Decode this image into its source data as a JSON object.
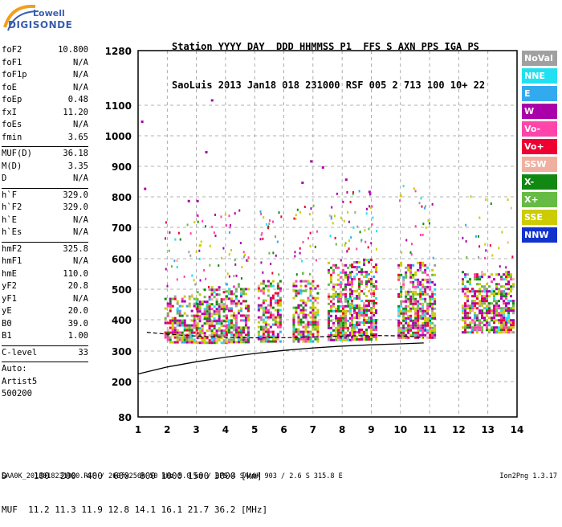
{
  "logo": {
    "line1": "Lowell",
    "line2": "DIGISONDE"
  },
  "header": {
    "line1": "Station YYYY DAY  DDD HHMMSS P1  FFS S AXN PPS IGA PS",
    "line2": "SaoLuis 2013 Jan18 018 231000 RSF 005 2 713 100 10+ 22"
  },
  "params": {
    "group1": [
      {
        "k": "foF2",
        "v": "10.800"
      },
      {
        "k": "foF1",
        "v": "N/A"
      },
      {
        "k": "foF1p",
        "v": "N/A"
      },
      {
        "k": "foE",
        "v": "N/A"
      },
      {
        "k": "foEp",
        "v": "0.48"
      },
      {
        "k": "fxI",
        "v": "11.20"
      },
      {
        "k": "foEs",
        "v": "N/A"
      },
      {
        "k": "fmin",
        "v": "3.65"
      }
    ],
    "group2": [
      {
        "k": "MUF(D)",
        "v": "36.18"
      },
      {
        "k": "M(D)",
        "v": "3.35"
      },
      {
        "k": "D",
        "v": "N/A"
      }
    ],
    "group3": [
      {
        "k": "h`F",
        "v": "329.0"
      },
      {
        "k": "h`F2",
        "v": "329.0"
      },
      {
        "k": "h`E",
        "v": "N/A"
      },
      {
        "k": "h`Es",
        "v": "N/A"
      }
    ],
    "group4": [
      {
        "k": "hmF2",
        "v": "325.8"
      },
      {
        "k": "hmF1",
        "v": "N/A"
      },
      {
        "k": "hmE",
        "v": "110.0"
      },
      {
        "k": "yF2",
        "v": "20.8"
      },
      {
        "k": "yF1",
        "v": "N/A"
      },
      {
        "k": "yE",
        "v": "20.0"
      },
      {
        "k": "B0",
        "v": "39.0"
      },
      {
        "k": "B1",
        "v": "1.00"
      }
    ],
    "group5": [
      {
        "k": "C-level",
        "v": "33"
      }
    ],
    "auto": [
      "Auto:",
      "Artist5",
      "500200"
    ]
  },
  "legend": [
    {
      "label": "NoVal",
      "color": "#a0a0a0"
    },
    {
      "label": "NNE",
      "color": "#22e0f0"
    },
    {
      "label": "E",
      "color": "#33aaee"
    },
    {
      "label": "W",
      "color": "#aa00aa"
    },
    {
      "label": "Vo-",
      "color": "#ff44aa"
    },
    {
      "label": "Vo+",
      "color": "#ee0033"
    },
    {
      "label": "SSW",
      "color": "#f0b0a0"
    },
    {
      "label": "X-",
      "color": "#118811"
    },
    {
      "label": "X+",
      "color": "#66bb44"
    },
    {
      "label": "SSE",
      "color": "#cccc00"
    },
    {
      "label": "NNW",
      "color": "#1133cc"
    }
  ],
  "footer": {
    "line1": "D     100  200  400  600  800 1000 1500 3000 [km]",
    "line2": "MUF  11.2 11.3 11.9 12.8 14.1 16.1 21.7 36.2 [MHz]",
    "line3": "SAA0K_2013018231000.RSF / 260fx256h 50 kHz 5.0 km / DPS-4 SAA0K 903 / 2.6 S 315.8 E",
    "version": "Ion2Png 1.3.17"
  },
  "chart_data": {
    "type": "scatter",
    "x_ticks": [
      "1",
      "2",
      "3",
      "4",
      "5",
      "6",
      "7",
      "8",
      "9",
      "10",
      "11",
      "12",
      "13",
      "14"
    ],
    "y_ticks": [
      "80",
      "200",
      "300",
      "400",
      "500",
      "600",
      "700",
      "800",
      "900",
      "1000",
      "1100",
      "1280"
    ],
    "xlim": [
      1,
      14
    ],
    "ylim": [
      80,
      1280
    ],
    "y_scale": "nonlinear (ionogram virtual height)",
    "grid": "dashed",
    "trace": {
      "x": [
        1.0,
        2.0,
        3.0,
        4.0,
        5.0,
        6.0,
        7.0,
        8.0,
        9.0,
        10.0,
        10.8
      ],
      "y": [
        225,
        248,
        265,
        280,
        292,
        302,
        310,
        316,
        320,
        323,
        326
      ]
    },
    "echo_clusters": [
      {
        "x0": 1.9,
        "x1": 3.0,
        "ymin": 330,
        "ymax": 480
      },
      {
        "x0": 3.0,
        "x1": 4.0,
        "ymin": 325,
        "ymax": 510
      },
      {
        "x0": 4.0,
        "x1": 4.8,
        "ymin": 330,
        "ymax": 520
      },
      {
        "x0": 5.1,
        "x1": 5.9,
        "ymin": 330,
        "ymax": 530
      },
      {
        "x0": 6.3,
        "x1": 7.2,
        "ymin": 330,
        "ymax": 530
      },
      {
        "x0": 7.5,
        "x1": 8.3,
        "ymin": 335,
        "ymax": 590
      },
      {
        "x0": 8.3,
        "x1": 9.2,
        "ymin": 335,
        "ymax": 600
      },
      {
        "x0": 9.9,
        "x1": 11.2,
        "ymin": 340,
        "ymax": 590
      },
      {
        "x0": 12.1,
        "x1": 13.9,
        "ymin": 360,
        "ymax": 560
      }
    ]
  }
}
